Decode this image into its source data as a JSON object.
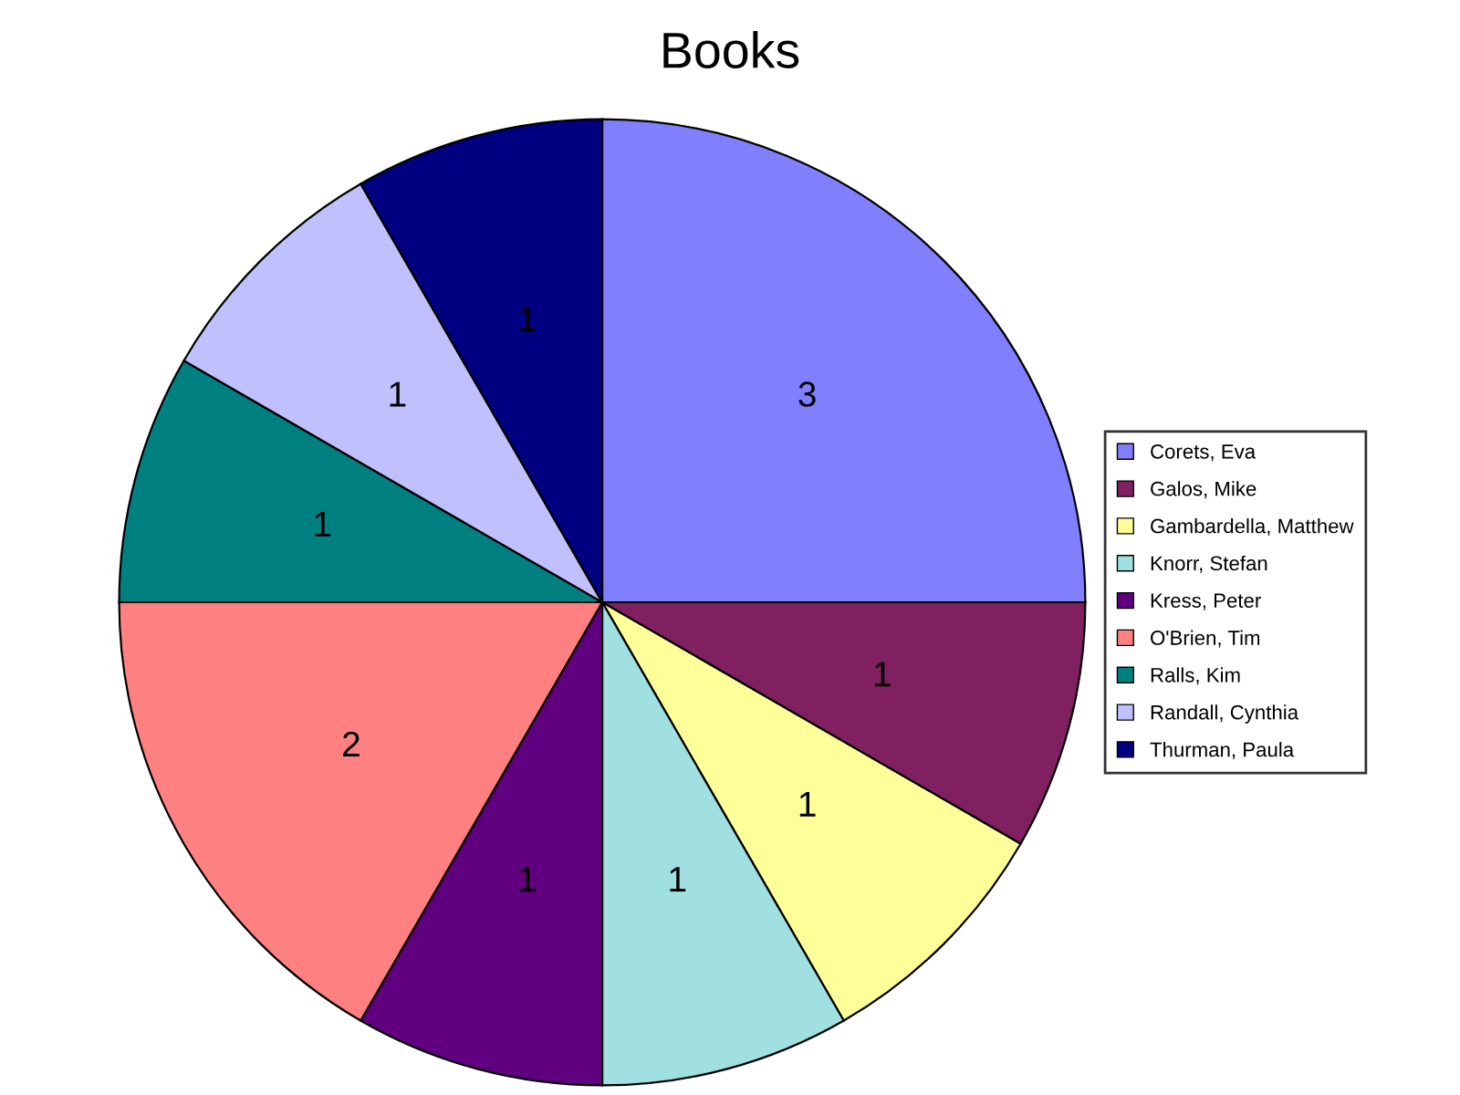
{
  "chart_data": {
    "type": "pie",
    "title": "Books",
    "categories": [
      "Corets, Eva",
      "Galos, Mike",
      "Gambardella, Matthew",
      "Knorr, Stefan",
      "Kress, Peter",
      "O'Brien, Tim",
      "Ralls, Kim",
      "Randall, Cynthia",
      "Thurman, Paula"
    ],
    "values": [
      3,
      1,
      1,
      1,
      1,
      2,
      1,
      1,
      1
    ],
    "colors": [
      "#8080ff",
      "#802060",
      "#ffff99",
      "#a0e0e0",
      "#600080",
      "#ff8080",
      "#008080",
      "#c0c0ff",
      "#000080"
    ],
    "data_labels": true,
    "legend": "right"
  }
}
